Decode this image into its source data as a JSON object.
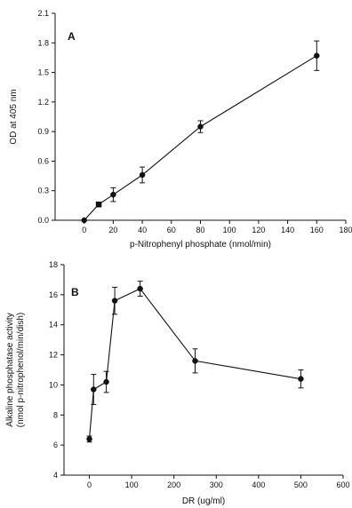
{
  "chart_data": [
    {
      "type": "line",
      "panel_label": "A",
      "xlabel": "p-Nitrophenyl phosphate (nmol/min)",
      "ylabel": "OD at 405 nm",
      "xlim": [
        -20,
        180
      ],
      "ylim": [
        0.0,
        2.1
      ],
      "x_ticks": [
        0,
        20,
        40,
        60,
        80,
        100,
        120,
        140,
        160,
        180
      ],
      "y_ticks": [
        "0.0",
        "0.3",
        "0.6",
        "0.9",
        "1.2",
        "1.5",
        "1.8",
        "2.1"
      ],
      "grid": false,
      "legend": "none",
      "series": [
        {
          "marker": "mixed",
          "x": [
            0,
            10,
            20,
            40,
            80,
            160
          ],
          "y": [
            0.0,
            0.16,
            0.26,
            0.46,
            0.95,
            1.67
          ],
          "error": [
            0,
            0,
            0.07,
            0.08,
            0.06,
            0.15
          ],
          "markers": [
            "circle",
            "square",
            "circle",
            "circle",
            "circle",
            "circle"
          ]
        }
      ]
    },
    {
      "type": "line",
      "panel_label": "B",
      "xlabel": "DR (ug/ml)",
      "ylabel": [
        "Alkaline phosphatase activity",
        "(nmol p-nitrophenol/min/dish)"
      ],
      "xlim": [
        -60,
        600
      ],
      "ylim": [
        4,
        18
      ],
      "x_ticks": [
        0,
        100,
        200,
        300,
        400,
        500,
        600
      ],
      "x_tick_labels": [
        "0",
        "100",
        "200",
        "300",
        "400",
        "500",
        "600"
      ],
      "y_ticks": [
        4,
        6,
        8,
        10,
        12,
        14,
        16,
        18
      ],
      "grid": false,
      "legend": "none",
      "series": [
        {
          "marker": "circle",
          "x": [
            0,
            10,
            40,
            60,
            120,
            250,
            500
          ],
          "y": [
            6.4,
            9.7,
            10.2,
            15.6,
            16.4,
            11.6,
            10.4
          ],
          "error": [
            0.2,
            1.0,
            0.7,
            0.9,
            0.5,
            0.8,
            0.6
          ]
        }
      ]
    }
  ]
}
